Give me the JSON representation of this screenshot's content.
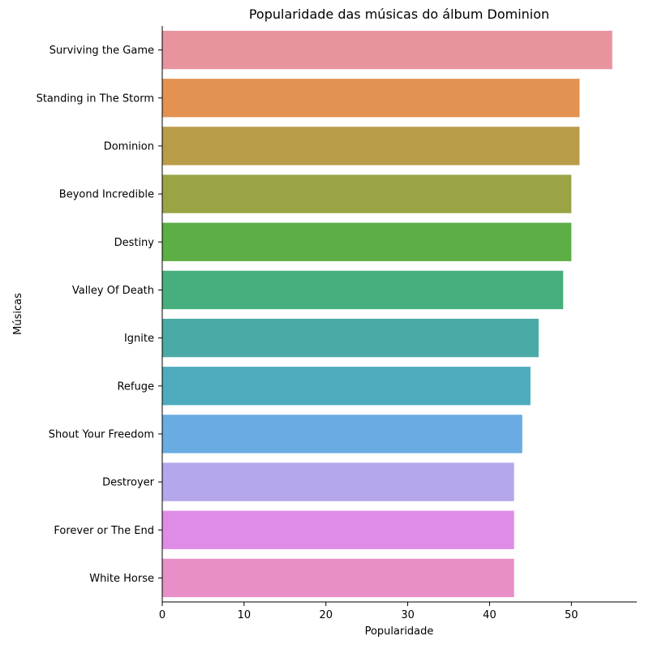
{
  "chart_data": {
    "type": "bar",
    "orientation": "horizontal",
    "title": "Popularidade das músicas do álbum Dominion",
    "xlabel": "Popularidade",
    "ylabel": "Músicas",
    "xlim": [
      0,
      58
    ],
    "xticks": [
      0,
      10,
      20,
      30,
      40,
      50
    ],
    "categories": [
      "Surviving the Game",
      "Standing in The Storm",
      "Dominion",
      "Beyond Incredible",
      "Destiny",
      "Valley Of Death",
      "Ignite",
      "Refuge",
      "Shout Your Freedom",
      "Destroyer",
      "Forever or The End",
      "White Horse"
    ],
    "values": [
      55,
      51,
      51,
      50,
      50,
      49,
      46,
      45,
      44,
      43,
      43,
      43
    ],
    "colors": [
      "#e8949f",
      "#e39251",
      "#b99c48",
      "#9ba445",
      "#5cae45",
      "#46af7d",
      "#4aaaa6",
      "#4dabbd",
      "#6aace2",
      "#b6a6ec",
      "#df8ce7",
      "#e78fc6"
    ],
    "grid": false,
    "legend": "none"
  }
}
